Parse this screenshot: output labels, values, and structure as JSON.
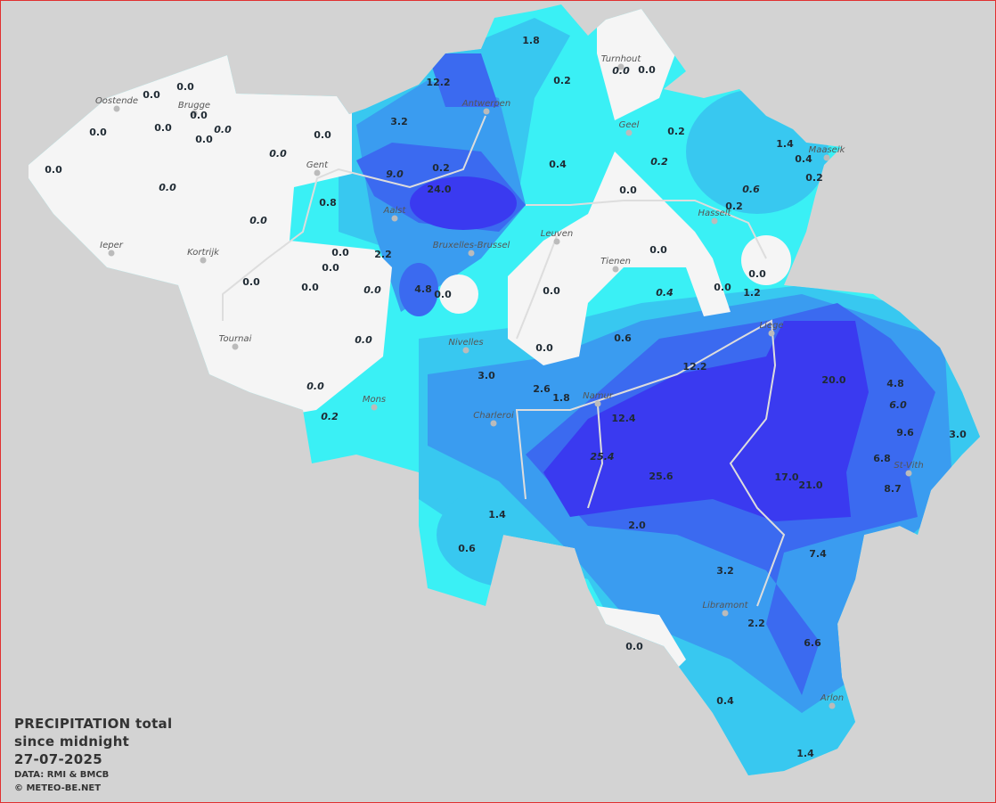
{
  "legend": {
    "title_line1": "PRECIPITATION total",
    "title_line2": "since midnight",
    "date": "27-07-2025",
    "data_source": "DATA: RMI & BMCB",
    "copyright": "© METEO-BE.NET"
  },
  "colors": {
    "background": "#d3d3d3",
    "no_rain": "#f5f5f5",
    "very_light": "#3af0f5",
    "light": "#38c8f0",
    "moderate": "#3a9cf0",
    "heavy": "#3b6af0",
    "very_heavy": "#3a3af0",
    "frame": "#e03030"
  },
  "cities": [
    "Oostende",
    "Brugge",
    "Gent",
    "Aalst",
    "Antwerpen",
    "Bruxelles-Brussel",
    "Turnhout",
    "Geel",
    "Hasselt",
    "Maaseik",
    "Leuven",
    "Tienen",
    "Ieper",
    "Kortrijk",
    "Tournai",
    "Nivelles",
    "Mons",
    "Charleroi",
    "Namur",
    "Liege",
    "St-Vith",
    "Libramont",
    "Arlon"
  ],
  "observations": [
    {
      "value": "0.0",
      "italic": false
    },
    {
      "value": "0.0",
      "italic": false
    },
    {
      "value": "0.0",
      "italic": false
    },
    {
      "value": "0.0",
      "italic": false
    },
    {
      "value": "0.0",
      "italic": false
    },
    {
      "value": "0.0",
      "italic": false
    },
    {
      "value": "0.0",
      "italic": true
    },
    {
      "value": "0.0",
      "italic": false
    },
    {
      "value": "0.0",
      "italic": true
    },
    {
      "value": "0.0",
      "italic": false
    },
    {
      "value": "0.0",
      "italic": true
    },
    {
      "value": "0.0",
      "italic": true
    },
    {
      "value": "0.8",
      "italic": false
    },
    {
      "value": "3.2",
      "italic": false
    },
    {
      "value": "12.2",
      "italic": false
    },
    {
      "value": "9.0",
      "italic": true
    },
    {
      "value": "0.2",
      "italic": false
    },
    {
      "value": "24.0",
      "italic": false
    },
    {
      "value": "2.2",
      "italic": false
    },
    {
      "value": "0.0",
      "italic": false
    },
    {
      "value": "0.0",
      "italic": false
    },
    {
      "value": "0.0",
      "italic": false
    },
    {
      "value": "0.0",
      "italic": false
    },
    {
      "value": "0.0",
      "italic": true
    },
    {
      "value": "4.8",
      "italic": false
    },
    {
      "value": "0.0",
      "italic": false
    },
    {
      "value": "0.0",
      "italic": true
    },
    {
      "value": "0.0",
      "italic": true
    },
    {
      "value": "0.2",
      "italic": true
    },
    {
      "value": "1.8",
      "italic": false
    },
    {
      "value": "0.2",
      "italic": false
    },
    {
      "value": "0.0",
      "italic": true
    },
    {
      "value": "0.0",
      "italic": false
    },
    {
      "value": "0.2",
      "italic": false
    },
    {
      "value": "0.4",
      "italic": false
    },
    {
      "value": "0.2",
      "italic": true
    },
    {
      "value": "1.4",
      "italic": false
    },
    {
      "value": "0.4",
      "italic": false
    },
    {
      "value": "0.2",
      "italic": false
    },
    {
      "value": "0.6",
      "italic": true
    },
    {
      "value": "0.0",
      "italic": false
    },
    {
      "value": "0.2",
      "italic": false
    },
    {
      "value": "0.0",
      "italic": false
    },
    {
      "value": "0.0",
      "italic": false
    },
    {
      "value": "0.0",
      "italic": false
    },
    {
      "value": "0.4",
      "italic": true
    },
    {
      "value": "0.0",
      "italic": false
    },
    {
      "value": "1.2",
      "italic": false
    },
    {
      "value": "0.6",
      "italic": false
    },
    {
      "value": "0.0",
      "italic": false
    },
    {
      "value": "12.2",
      "italic": false
    },
    {
      "value": "3.0",
      "italic": false
    },
    {
      "value": "2.6",
      "italic": false
    },
    {
      "value": "1.8",
      "italic": false
    },
    {
      "value": "20.0",
      "italic": false
    },
    {
      "value": "4.8",
      "italic": false
    },
    {
      "value": "6.0",
      "italic": true
    },
    {
      "value": "12.4",
      "italic": false
    },
    {
      "value": "9.6",
      "italic": false
    },
    {
      "value": "3.0",
      "italic": false
    },
    {
      "value": "25.4",
      "italic": true
    },
    {
      "value": "6.8",
      "italic": false
    },
    {
      "value": "25.6",
      "italic": false
    },
    {
      "value": "17.0",
      "italic": false
    },
    {
      "value": "21.0",
      "italic": false
    },
    {
      "value": "8.7",
      "italic": false
    },
    {
      "value": "2.0",
      "italic": false
    },
    {
      "value": "1.4",
      "italic": false
    },
    {
      "value": "0.6",
      "italic": false
    },
    {
      "value": "3.2",
      "italic": false
    },
    {
      "value": "7.4",
      "italic": false
    },
    {
      "value": "2.2",
      "italic": false
    },
    {
      "value": "0.0",
      "italic": false
    },
    {
      "value": "6.6",
      "italic": false
    },
    {
      "value": "0.4",
      "italic": false
    },
    {
      "value": "1.4",
      "italic": false
    }
  ]
}
